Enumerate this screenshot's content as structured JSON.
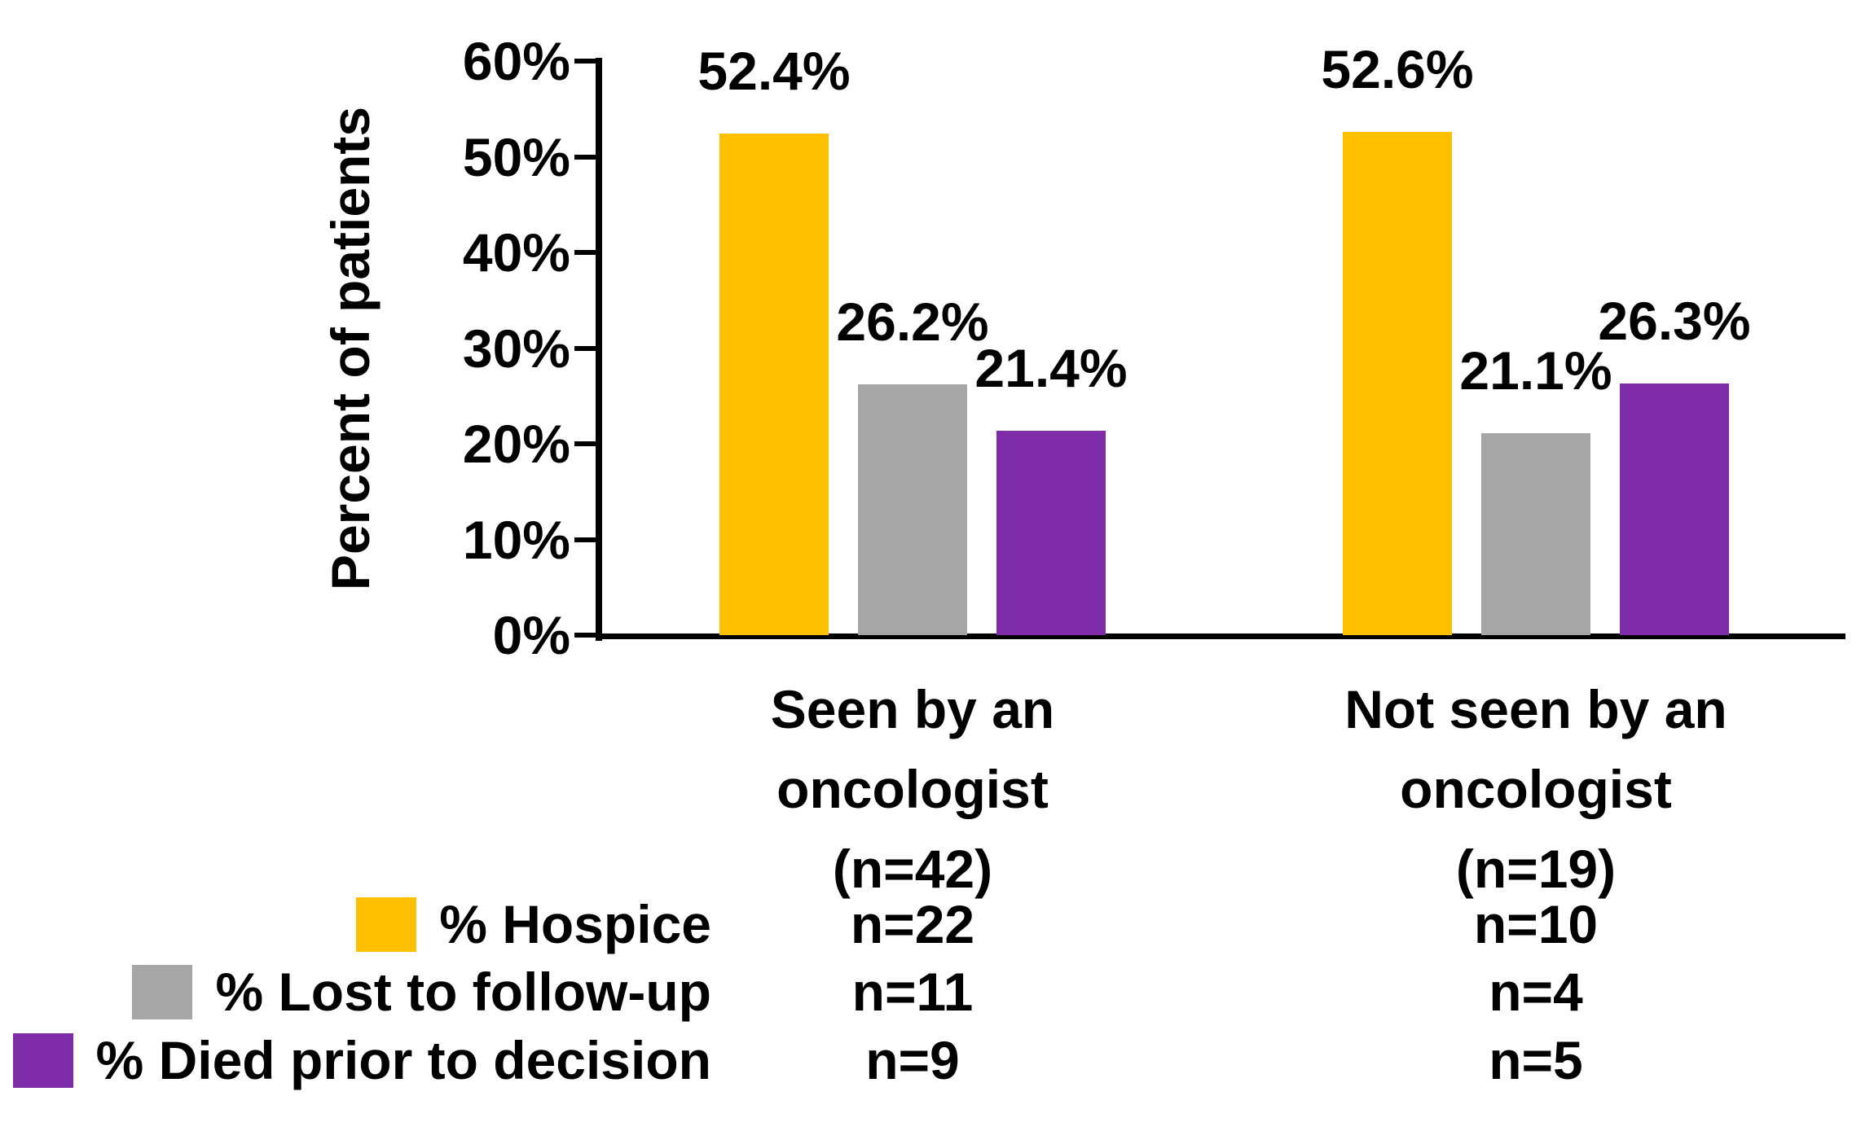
{
  "chart_data": {
    "type": "bar",
    "title": "",
    "ylabel": "Percent of patients",
    "xlabel": "",
    "ylim": [
      0,
      60
    ],
    "yticks": [
      0,
      10,
      20,
      30,
      40,
      50,
      60
    ],
    "ytick_suffix": "%",
    "grid": false,
    "legend_position": "bottom-left",
    "background": "#FFFFFF",
    "axis_color": "#000000",
    "text_color": "#000000",
    "categories": [
      "Seen by an oncologist (n=42)",
      "Not seen by an oncologist (n=19)"
    ],
    "category_keys": [
      "seen",
      "not-seen"
    ],
    "category_lines": [
      [
        "Seen by an",
        "oncologist",
        "(n=42)"
      ],
      [
        "Not seen by an",
        "oncologist",
        "(n=19)"
      ]
    ],
    "series": [
      {
        "key": "hospice",
        "name": "% Hospice",
        "color": "#FFC000",
        "values": [
          52.4,
          52.6
        ],
        "labels": [
          "52.4%",
          "52.6%"
        ],
        "counts": [
          "n=22",
          "n=10"
        ]
      },
      {
        "key": "lost-to-follow-up",
        "name": "% Lost to follow-up",
        "color": "#A6A6A6",
        "values": [
          26.2,
          21.1
        ],
        "labels": [
          "26.2%",
          "21.1%"
        ],
        "counts": [
          "n=11",
          "n=4"
        ]
      },
      {
        "key": "died-prior-to-decision",
        "name": "% Died prior to decision",
        "color": "#7E2CA8",
        "values": [
          21.4,
          26.3
        ],
        "labels": [
          "21.4%",
          "26.3%"
        ],
        "counts": [
          "n=9",
          "n=5"
        ]
      }
    ]
  }
}
